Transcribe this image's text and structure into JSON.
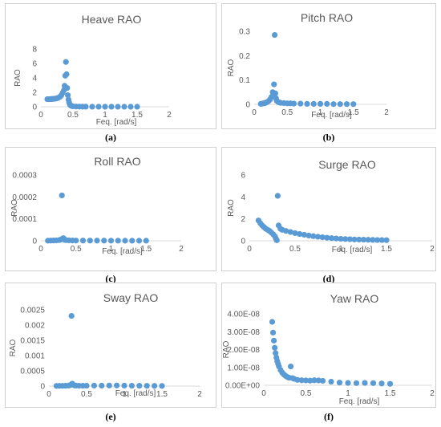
{
  "chart_data": [
    {
      "id": "a",
      "caption": "(a)",
      "type": "scatter",
      "title": "Heave RAO",
      "xlabel": "Feq. [rad/s]",
      "ylabel": "RAO",
      "xticks": [
        "0",
        "0.5",
        "1",
        "1.5",
        "2"
      ],
      "yticks": [
        "0",
        "2",
        "4",
        "6",
        "8"
      ],
      "xlim": [
        0,
        2
      ],
      "ylim": [
        0,
        8
      ],
      "color": "#5b9bd5",
      "x": [
        0.1,
        0.12,
        0.14,
        0.16,
        0.18,
        0.2,
        0.22,
        0.24,
        0.26,
        0.28,
        0.3,
        0.32,
        0.34,
        0.36,
        0.37,
        0.38,
        0.39,
        0.4,
        0.41,
        0.42,
        0.43,
        0.44,
        0.45,
        0.46,
        0.48,
        0.5,
        0.55,
        0.6,
        0.65,
        0.7,
        0.8,
        0.9,
        1.0,
        1.1,
        1.2,
        1.3,
        1.4,
        1.5
      ],
      "y": [
        1.05,
        1.05,
        1.06,
        1.07,
        1.08,
        1.1,
        1.12,
        1.15,
        1.2,
        1.28,
        1.4,
        1.6,
        1.95,
        2.3,
        2.9,
        4.3,
        6.2,
        4.5,
        2.6,
        1.6,
        1.0,
        0.6,
        0.35,
        0.2,
        0.1,
        0.06,
        0.03,
        0.02,
        0.01,
        0.01,
        0.005,
        0.003,
        0.002,
        0.002,
        0.001,
        0.001,
        0.001,
        0.001
      ]
    },
    {
      "id": "b",
      "caption": "(b)",
      "type": "scatter",
      "title": "Pitch RAO",
      "xlabel": "Feq. [rad/s]",
      "ylabel": "RAO",
      "xticks": [
        "0",
        "0.5",
        "1",
        "1.5",
        "2"
      ],
      "yticks": [
        "0",
        "0.1",
        "0.2",
        "0.3"
      ],
      "xlim": [
        0,
        2
      ],
      "ylim": [
        0,
        0.3
      ],
      "color": "#5b9bd5",
      "x": [
        0.1,
        0.12,
        0.14,
        0.16,
        0.18,
        0.2,
        0.22,
        0.24,
        0.26,
        0.28,
        0.3,
        0.31,
        0.32,
        0.33,
        0.34,
        0.36,
        0.38,
        0.4,
        0.45,
        0.5,
        0.55,
        0.6,
        0.7,
        0.8,
        0.9,
        1.0,
        1.1,
        1.2,
        1.3,
        1.4,
        1.5
      ],
      "y": [
        0.002,
        0.003,
        0.004,
        0.005,
        0.007,
        0.01,
        0.014,
        0.02,
        0.03,
        0.05,
        0.082,
        0.285,
        0.045,
        0.025,
        0.015,
        0.01,
        0.008,
        0.006,
        0.005,
        0.004,
        0.004,
        0.003,
        0.003,
        0.002,
        0.002,
        0.002,
        0.002,
        0.001,
        0.001,
        0.001,
        0.001
      ]
    },
    {
      "id": "c",
      "caption": "(c)",
      "type": "scatter",
      "title": "Roll RAO",
      "xlabel": "Feq. [rad/s]",
      "ylabel": "RAO",
      "xticks": [
        "0",
        "0.5",
        "1",
        "1.5",
        "2"
      ],
      "yticks": [
        "0",
        "0.0001",
        "0.0002",
        "0.0003"
      ],
      "xlim": [
        0,
        2
      ],
      "ylim": [
        0,
        0.0003
      ],
      "color": "#5b9bd5",
      "x": [
        0.1,
        0.14,
        0.18,
        0.22,
        0.26,
        0.28,
        0.3,
        0.31,
        0.32,
        0.33,
        0.34,
        0.36,
        0.4,
        0.45,
        0.5,
        0.6,
        0.7,
        0.8,
        0.9,
        1.0,
        1.1,
        1.2,
        1.3,
        1.4,
        1.5
      ],
      "y": [
        5e-07,
        1e-06,
        1.5e-06,
        2e-06,
        3e-06,
        5e-06,
        0.000207,
        1e-05,
        1.2e-05,
        8e-06,
        4e-06,
        3e-06,
        2e-06,
        1.5e-06,
        1e-06,
        1e-06,
        1e-06,
        8e-07,
        8e-07,
        6e-07,
        6e-07,
        5e-07,
        5e-07,
        4e-07,
        4e-07
      ]
    },
    {
      "id": "d",
      "caption": "(d)",
      "type": "scatter",
      "title": "Surge RAO",
      "xlabel": "Feq. [rad/s]",
      "ylabel": "RAO",
      "xticks": [
        "0",
        "0.5",
        "1",
        "1.5",
        "2"
      ],
      "yticks": [
        "0",
        "2",
        "4",
        "6"
      ],
      "xlim": [
        0,
        2
      ],
      "ylim": [
        0,
        6
      ],
      "color": "#5b9bd5",
      "x": [
        0.1,
        0.12,
        0.14,
        0.16,
        0.18,
        0.2,
        0.22,
        0.24,
        0.26,
        0.28,
        0.29,
        0.3,
        0.31,
        0.32,
        0.34,
        0.36,
        0.4,
        0.45,
        0.5,
        0.55,
        0.6,
        0.65,
        0.7,
        0.75,
        0.8,
        0.85,
        0.9,
        0.95,
        1.0,
        1.05,
        1.1,
        1.15,
        1.2,
        1.25,
        1.3,
        1.35,
        1.4,
        1.45,
        1.5
      ],
      "y": [
        1.85,
        1.6,
        1.4,
        1.25,
        1.1,
        1.0,
        0.9,
        0.75,
        0.6,
        0.4,
        0.2,
        0.05,
        4.1,
        1.4,
        1.1,
        1.0,
        0.9,
        0.8,
        0.7,
        0.62,
        0.55,
        0.48,
        0.42,
        0.37,
        0.32,
        0.28,
        0.24,
        0.21,
        0.18,
        0.16,
        0.14,
        0.12,
        0.11,
        0.1,
        0.09,
        0.08,
        0.07,
        0.07,
        0.06
      ]
    },
    {
      "id": "e",
      "caption": "(e)",
      "type": "scatter",
      "title": "Sway RAO",
      "xlabel": "Feq. [rad/s]",
      "ylabel": "RAO",
      "xticks": [
        "0",
        "0.5",
        "1",
        "1.5",
        "2"
      ],
      "yticks": [
        "0",
        "0.0005",
        "0.001",
        "0.0015",
        "0.002",
        "0.0025"
      ],
      "xlim": [
        0,
        2
      ],
      "ylim": [
        0,
        0.0025
      ],
      "color": "#5b9bd5",
      "x": [
        0.1,
        0.14,
        0.18,
        0.22,
        0.26,
        0.28,
        0.3,
        0.31,
        0.32,
        0.34,
        0.36,
        0.4,
        0.45,
        0.5,
        0.6,
        0.7,
        0.8,
        0.9,
        1.0,
        1.1,
        1.2,
        1.3,
        1.4,
        1.5
      ],
      "y": [
        5e-06,
        6e-06,
        8e-06,
        1e-05,
        1.5e-05,
        3e-05,
        0.0023,
        8e-05,
        4e-05,
        2e-05,
        1.5e-05,
        1e-05,
        1e-05,
        1.2e-05,
        1.5e-05,
        1.5e-05,
        1.8e-05,
        2e-05,
        1.5e-05,
        1.2e-05,
        1e-05,
        8e-06,
        6e-06,
        5e-06
      ]
    },
    {
      "id": "f",
      "caption": "(f)",
      "type": "scatter",
      "title": "Yaw RAO",
      "xlabel": "Feq. [rad/s]",
      "ylabel": "RAO",
      "xticks": [
        "0",
        "0.5",
        "1",
        "1.5",
        "2"
      ],
      "yticks": [
        "0.00E+00",
        "1.00E-08",
        "2.00E-08",
        "3.00E-08",
        "4.00E-08"
      ],
      "xlim": [
        0,
        2
      ],
      "ylim": [
        0,
        4e-08
      ],
      "color": "#5b9bd5",
      "x": [
        0.1,
        0.11,
        0.12,
        0.13,
        0.14,
        0.15,
        0.16,
        0.17,
        0.18,
        0.2,
        0.22,
        0.24,
        0.26,
        0.28,
        0.3,
        0.32,
        0.34,
        0.36,
        0.4,
        0.45,
        0.5,
        0.55,
        0.6,
        0.65,
        0.7,
        0.8,
        0.9,
        1.0,
        1.1,
        1.2,
        1.3,
        1.4,
        1.5
      ],
      "y": [
        3.55e-08,
        2.95e-08,
        2.5e-08,
        2.1e-08,
        1.8e-08,
        1.55e-08,
        1.35e-08,
        1.2e-08,
        1.05e-08,
        8.5e-09,
        7e-09,
        6e-09,
        5.2e-09,
        4.6e-09,
        4.2e-09,
        1.05e-08,
        4e-09,
        3.6e-09,
        3e-09,
        2.8e-09,
        2.7e-09,
        2.6e-09,
        2.8e-09,
        2.7e-09,
        2.5e-09,
        2e-09,
        1.5e-09,
        1.3e-09,
        1.2e-09,
        1.3e-09,
        1.2e-09,
        1e-09,
        8e-10
      ]
    }
  ]
}
